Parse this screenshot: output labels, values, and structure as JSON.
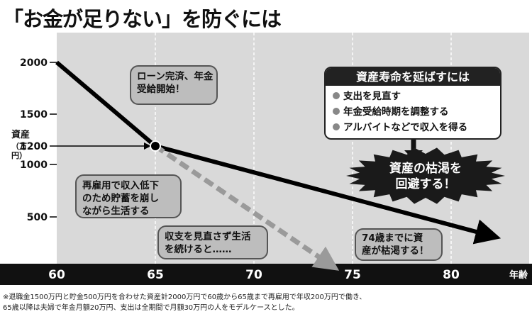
{
  "title": "「お金が足りない」を防ぐには",
  "chart_data": {
    "type": "line",
    "title": "「お金が足りない」を防ぐには",
    "xlabel": "年齢",
    "ylabel_main": "資産",
    "ylabel_unit": "（万円）",
    "x_ticks": [
      60,
      65,
      70,
      75,
      80
    ],
    "y_ticks": [
      500,
      1000,
      1200,
      1500,
      2000
    ],
    "xlim": [
      60,
      82
    ],
    "ylim": [
      0,
      2000
    ],
    "grid": "vertical-dashed",
    "series": [
      {
        "style": "solid-black",
        "x": [
          60,
          65,
          82
        ],
        "y": [
          2000,
          1200,
          300
        ]
      },
      {
        "style": "dashed-gray",
        "x": [
          65,
          73.8
        ],
        "y": [
          1200,
          0
        ]
      }
    ],
    "marker": {
      "x": 65,
      "y": 1200
    }
  },
  "annotations": {
    "loan": [
      "ローン完済、年金",
      "受給開始！"
    ],
    "reemploy": [
      "再雇用で収入低下",
      "のため貯蓄を崩し",
      "ながら生活する"
    ],
    "continue": [
      "収支を見直さず生活",
      "を続けると……"
    ],
    "depleted": [
      "74歳までに資",
      "産が枯渇する！"
    ]
  },
  "tips": {
    "title": "資産寿命を延ばすには",
    "items": [
      "支出を見直す",
      "年金受給時期を調整する",
      "アルバイトなどで収入を得る"
    ]
  },
  "burst": [
    "資産の枯渇を",
    "回避する！"
  ],
  "footnote": [
    "※退職金1500万円と貯金500万円を合わせた資産計2000万円で60歳から65歳まで再雇用で年収200万円で働き、",
    "65歳以降は夫婦で年金月額20万円、支出は全期間で月額30万円の人をモデルケースとした。"
  ],
  "colors": {
    "plot_bg": "#d9d9d9",
    "axis_bar": "#111111",
    "solid_line": "#000000",
    "dashed_line": "#9a9a9a",
    "bubble_fill": "#bdbdbd",
    "burst_fill": "#1a1a1a"
  }
}
